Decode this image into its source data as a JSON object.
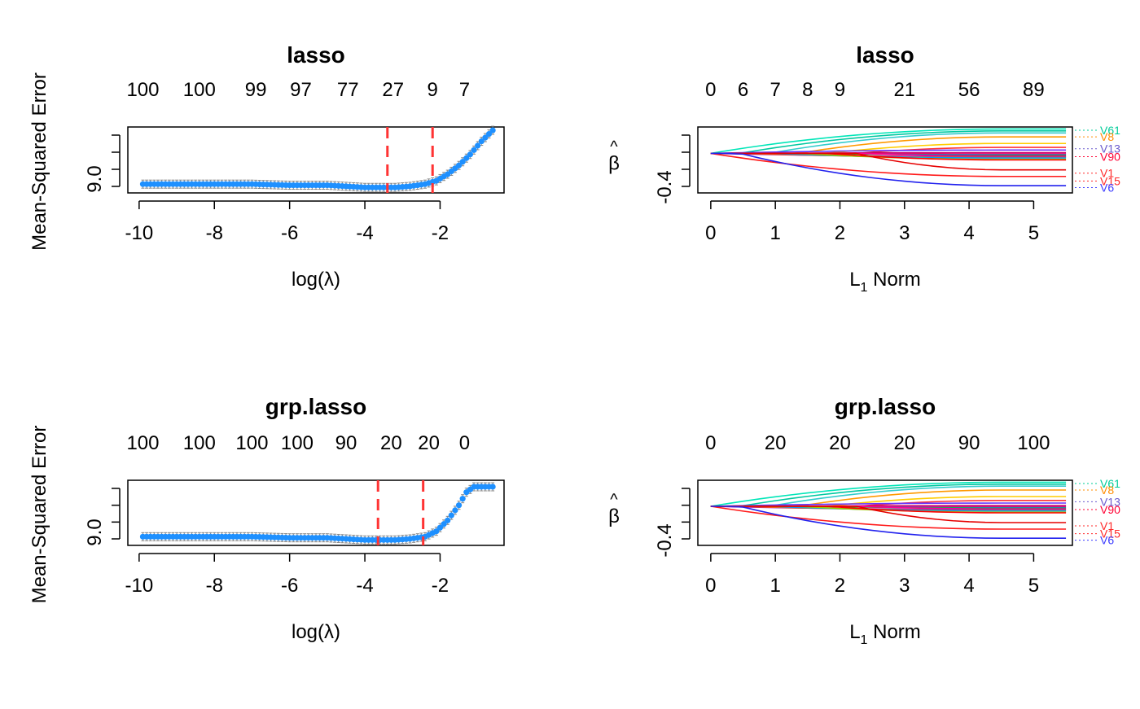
{
  "chart_data": [
    {
      "type": "scatter",
      "title": "lasso",
      "xlabel": "log(λ)",
      "ylabel": "Mean-Squared Error",
      "x_ticks": [
        "-10",
        "-8",
        "-6",
        "-4",
        "-2"
      ],
      "y_ticks": [
        "9.0"
      ],
      "top_axis": {
        "x": [
          -9.9,
          -8.4,
          -6.9,
          -5.7,
          -4.45,
          -3.25,
          -2.2,
          -1.35
        ],
        "labels": [
          "100",
          "100",
          "99",
          "97",
          "77",
          "27",
          "9",
          "7"
        ]
      },
      "xlim": [
        -10.3,
        -0.3
      ],
      "ylim": [
        8.95,
        9.55
      ],
      "vlines": [
        -3.4,
        -2.2
      ],
      "vline_color": "#ff3333",
      "point_color": "#1e90ff",
      "errorbar_color": "#888888",
      "series": [
        {
          "x": [
            -9.9,
            -9,
            -8,
            -7,
            -6,
            -5,
            -4.5,
            -4,
            -3.5,
            -3.2,
            -2.8,
            -2.4,
            -2.1,
            -1.8,
            -1.5,
            -1.2,
            -0.9,
            -0.6
          ],
          "y": [
            9.03,
            9.03,
            9.03,
            9.03,
            9.02,
            9.02,
            9.01,
            9.0,
            9.0,
            9.0,
            9.01,
            9.03,
            9.06,
            9.12,
            9.2,
            9.3,
            9.42,
            9.52
          ]
        }
      ]
    },
    {
      "type": "line",
      "title": "lasso",
      "xlabel": "L1 Norm",
      "xlabel_main": "L",
      "xlabel_sub": "1",
      "xlabel_rest": " Norm",
      "ylabel": "β̂",
      "ylabel_hat": "^",
      "ylabel_main": "β",
      "x_ticks": [
        "0",
        "1",
        "2",
        "3",
        "4",
        "5"
      ],
      "y_ticks": [
        "-0.4"
      ],
      "top_axis": {
        "x": [
          0,
          0.5,
          1,
          1.5,
          2,
          3,
          4,
          5
        ],
        "labels": [
          "0",
          "6",
          "7",
          "8",
          "9",
          "21",
          "56",
          "89"
        ]
      },
      "xlim": [
        -0.2,
        5.6
      ],
      "ylim": [
        -0.55,
        0.45
      ],
      "series_labels": [
        {
          "text": "V61",
          "y": 0.4,
          "color": "#00cc99"
        },
        {
          "text": "V8",
          "y": 0.3,
          "color": "#ff8c00"
        },
        {
          "text": "V13",
          "y": 0.12,
          "color": "#6a5acd"
        },
        {
          "text": "V90",
          "y": 0.0,
          "color": "#ff0033"
        },
        {
          "text": "V1",
          "y": -0.25,
          "color": "#ff2a2a"
        },
        {
          "text": "V15",
          "y": -0.37,
          "color": "#ff2a2a"
        },
        {
          "text": "V6",
          "y": -0.47,
          "color": "#3a3aff"
        }
      ]
    },
    {
      "type": "scatter",
      "title": "grp.lasso",
      "xlabel": "log(λ)",
      "ylabel": "Mean-Squared Error",
      "x_ticks": [
        "-10",
        "-8",
        "-6",
        "-4",
        "-2"
      ],
      "y_ticks": [
        "9.0"
      ],
      "top_axis": {
        "x": [
          -9.9,
          -8.4,
          -7,
          -5.8,
          -4.5,
          -3.3,
          -2.3,
          -1.35
        ],
        "labels": [
          "100",
          "100",
          "100",
          "100",
          "90",
          "20",
          "20",
          "0"
        ]
      },
      "xlim": [
        -10.3,
        -0.3
      ],
      "ylim": [
        8.95,
        9.55
      ],
      "vlines": [
        -3.65,
        -2.45
      ],
      "vline_color": "#ff3333",
      "point_color": "#1e90ff",
      "errorbar_color": "#888888",
      "series": [
        {
          "x": [
            -9.9,
            -9,
            -8,
            -7,
            -6,
            -5,
            -4.5,
            -4,
            -3.7,
            -3.2,
            -2.8,
            -2.4,
            -2.1,
            -1.8,
            -1.5,
            -1.3,
            -1.1,
            -0.9,
            -0.6
          ],
          "y": [
            9.03,
            9.03,
            9.03,
            9.03,
            9.02,
            9.02,
            9.01,
            9.0,
            9.0,
            9.0,
            9.01,
            9.03,
            9.08,
            9.18,
            9.32,
            9.44,
            9.49,
            9.49,
            9.49
          ]
        }
      ]
    },
    {
      "type": "line",
      "title": "grp.lasso",
      "xlabel": "L1 Norm",
      "xlabel_main": "L",
      "xlabel_sub": "1",
      "xlabel_rest": " Norm",
      "ylabel": "β̂",
      "ylabel_hat": "^",
      "ylabel_main": "β",
      "x_ticks": [
        "0",
        "1",
        "2",
        "3",
        "4",
        "5"
      ],
      "y_ticks": [
        "-0.4"
      ],
      "top_axis": {
        "x": [
          0,
          1,
          2,
          3,
          4,
          5
        ],
        "labels": [
          "0",
          "20",
          "20",
          "20",
          "90",
          "100"
        ]
      },
      "xlim": [
        -0.2,
        5.6
      ],
      "ylim": [
        -0.55,
        0.45
      ],
      "series_labels": [
        {
          "text": "V61",
          "y": 0.4,
          "color": "#00cc99"
        },
        {
          "text": "V8",
          "y": 0.3,
          "color": "#ff8c00"
        },
        {
          "text": "V13",
          "y": 0.12,
          "color": "#6a5acd"
        },
        {
          "text": "V90",
          "y": 0.0,
          "color": "#ff0033"
        },
        {
          "text": "V1",
          "y": -0.25,
          "color": "#ff2a2a"
        },
        {
          "text": "V15",
          "y": -0.37,
          "color": "#ff2a2a"
        },
        {
          "text": "V6",
          "y": -0.47,
          "color": "#3a3aff"
        }
      ]
    }
  ]
}
